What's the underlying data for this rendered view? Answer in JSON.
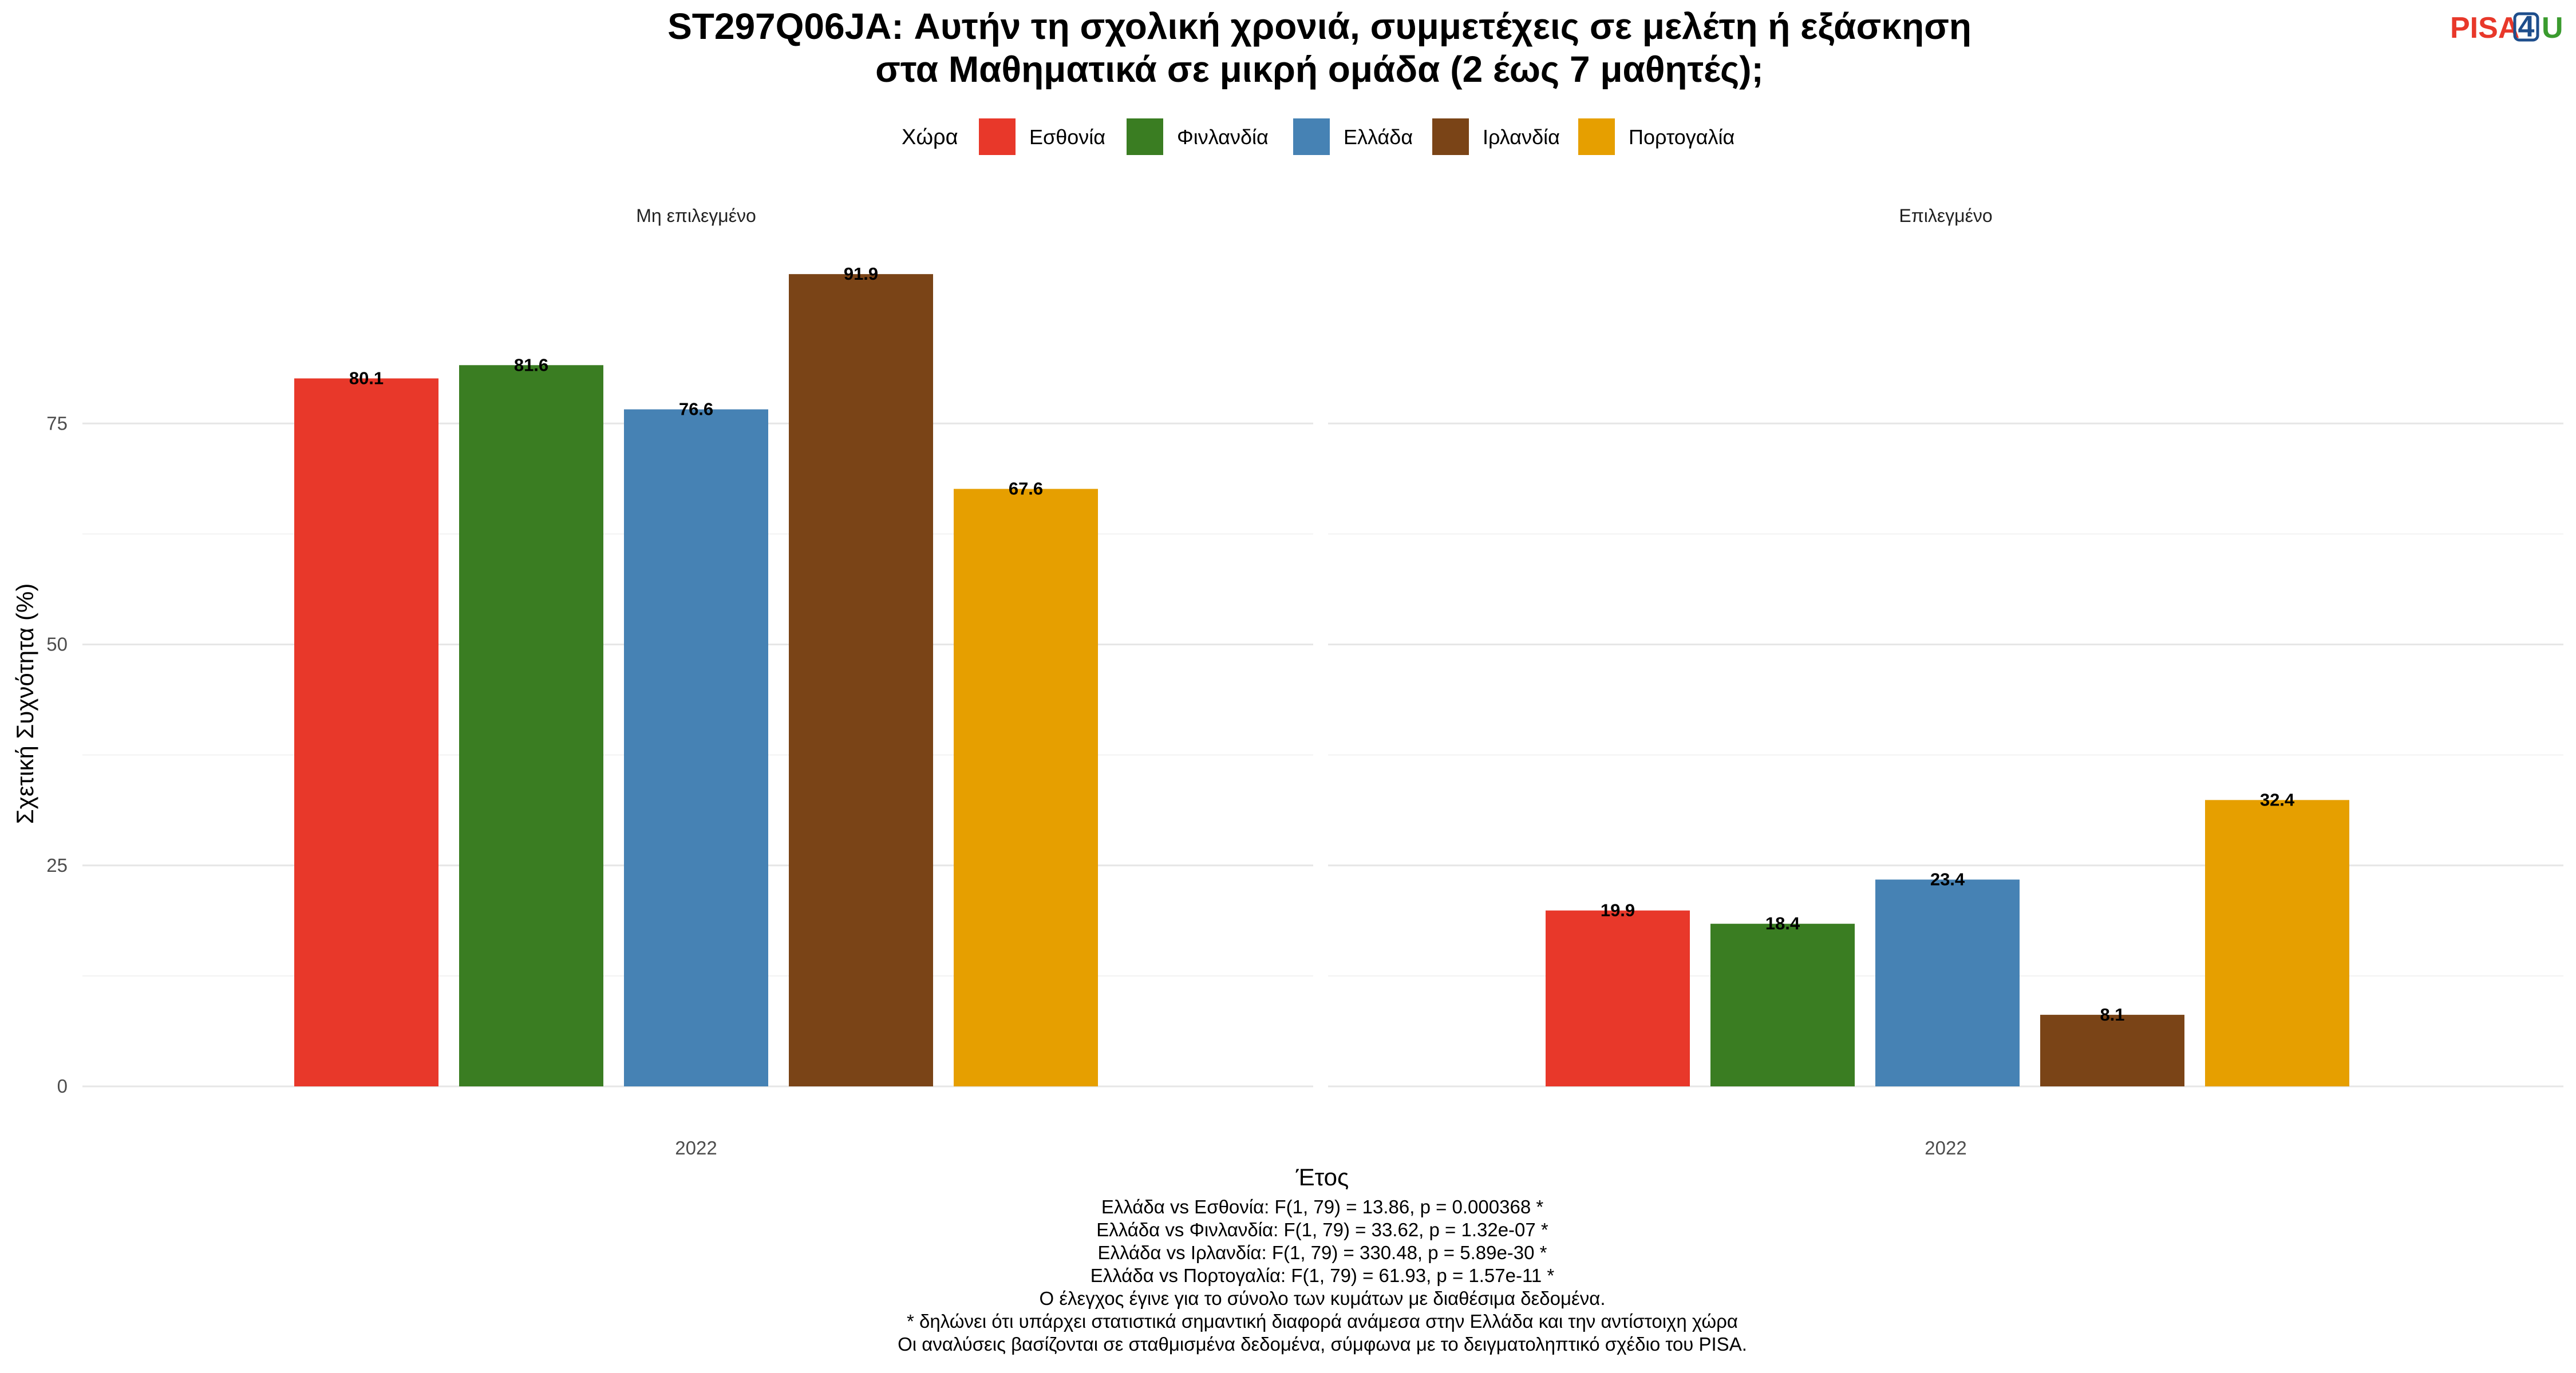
{
  "title_lines": [
    "ST297Q06JA: Αυτήν τη σχολική χρονιά, συμμετέχεις σε μελέτη ή εξάσκηση",
    "στα Μαθηματικά σε μικρή ομάδα (2 έως 7 μαθητές);"
  ],
  "logo": {
    "part1": "PISA",
    "part2": "4",
    "part3": "U"
  },
  "legend": {
    "title": "Χώρα",
    "items": [
      {
        "label": "Εσθονία",
        "color": "#E8382A"
      },
      {
        "label": "Φινλανδία",
        "color": "#3A7D22"
      },
      {
        "label": "Ελλάδα",
        "color": "#4682B4"
      },
      {
        "label": "Ιρλανδία",
        "color": "#7A4417"
      },
      {
        "label": "Πορτογαλία",
        "color": "#E69F00"
      }
    ]
  },
  "chart_data": {
    "type": "bar",
    "xlabel": "Έτος",
    "ylabel": "Σχετική Συχνότητα (%)",
    "ylim": [
      0,
      97
    ],
    "yticks": [
      0,
      25,
      50,
      75
    ],
    "grid": true,
    "legend_position": "top",
    "series_names": [
      "Εσθονία",
      "Φινλανδία",
      "Ελλάδα",
      "Ιρλανδία",
      "Πορτογαλία"
    ],
    "facets": [
      {
        "label": "Μη επιλεγμένο",
        "category": "2022",
        "values": [
          80.1,
          81.6,
          76.6,
          91.9,
          67.6
        ]
      },
      {
        "label": "Επιλεγμένο",
        "category": "2022",
        "values": [
          19.9,
          18.4,
          23.4,
          8.1,
          32.4
        ]
      }
    ]
  },
  "caption_lines": [
    "Ελλάδα vs Εσθονία: F(1, 79) = 13.86, p = 0.000368 *",
    "Ελλάδα vs Φινλανδία: F(1, 79) = 33.62, p = 1.32e-07 *",
    "Ελλάδα vs Ιρλανδία: F(1, 79) = 330.48, p = 5.89e-30 *",
    "Ελλάδα vs Πορτογαλία: F(1, 79) = 61.93, p = 1.57e-11 *",
    "Ο έλεγχος έγινε για το σύνολο των κυμάτων με διαθέσιμα δεδομένα.",
    "* δηλώνει ότι υπάρχει στατιστικά σημαντική διαφορά ανάμεσα στην Ελλάδα και την αντίστοιχη χώρα",
    "Οι αναλύσεις βασίζονται σε σταθμισμένα δεδομένα, σύμφωνα με το δειγματοληπτικό σχέδιο του PISA."
  ]
}
